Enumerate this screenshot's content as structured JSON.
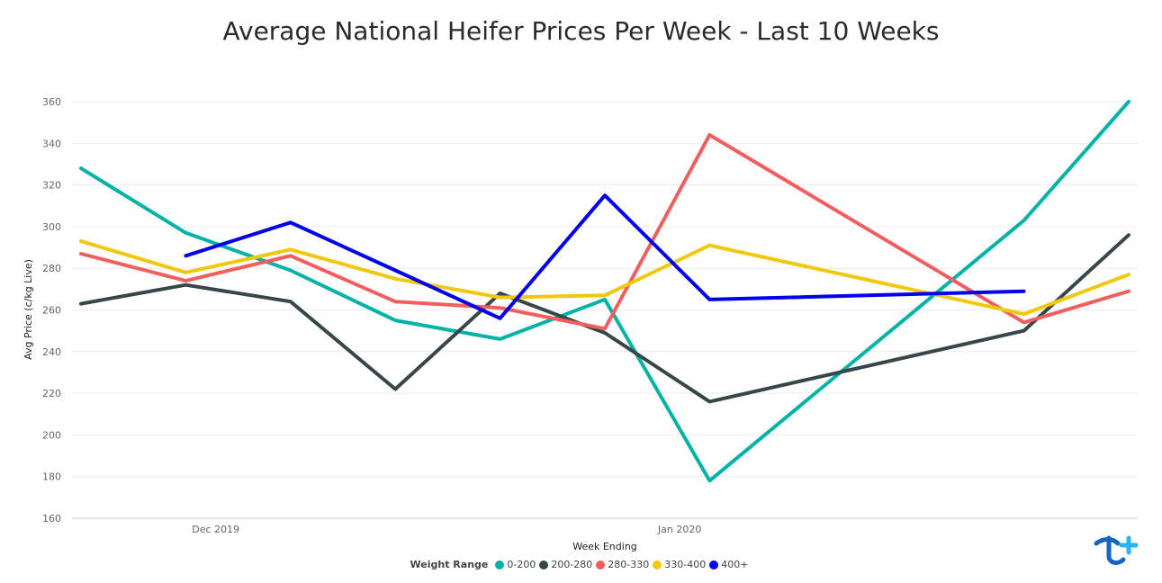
{
  "chart_data": {
    "type": "line",
    "title": "Average National Heifer Prices Per Week - Last 10 Weeks",
    "xlabel": "Week Ending",
    "ylabel": "Avg Price (c/kg Live)",
    "ylim": [
      160,
      360
    ],
    "y_ticks": [
      160,
      180,
      200,
      220,
      240,
      260,
      280,
      300,
      320,
      340,
      360
    ],
    "x": [
      "2019-11-22",
      "2019-11-29",
      "2019-12-06",
      "2019-12-13",
      "2019-12-20",
      "2019-12-27",
      "2020-01-03",
      "2020-01-10",
      "2020-01-17",
      "2020-01-24",
      "2020-01-31"
    ],
    "x_ticks": [
      {
        "label": "Dec 2019",
        "date": "2019-12-01"
      },
      {
        "label": "Jan 2020",
        "date": "2020-01-01"
      }
    ],
    "legend_title": "Weight Range",
    "legend_position": "bottom",
    "grid": true,
    "series": [
      {
        "name": "0-200",
        "color": "#00b3a6",
        "values": [
          328,
          297,
          279,
          255,
          246,
          265,
          178,
          null,
          null,
          303,
          360
        ]
      },
      {
        "name": "200-280",
        "color": "#374649",
        "values": [
          263,
          272,
          264,
          222,
          268,
          249,
          216,
          null,
          null,
          250,
          296
        ]
      },
      {
        "name": "280-330",
        "color": "#f25e5e",
        "values": [
          287,
          274,
          286,
          264,
          261,
          251,
          344,
          null,
          null,
          254,
          269
        ]
      },
      {
        "name": "330-400",
        "color": "#f2c80f",
        "values": [
          293,
          278,
          289,
          275,
          266,
          267,
          291,
          null,
          null,
          258,
          277
        ]
      },
      {
        "name": "400+",
        "color": "#0000ee",
        "values": [
          null,
          286,
          302,
          279,
          256,
          315,
          265,
          null,
          null,
          269,
          null
        ]
      }
    ]
  }
}
